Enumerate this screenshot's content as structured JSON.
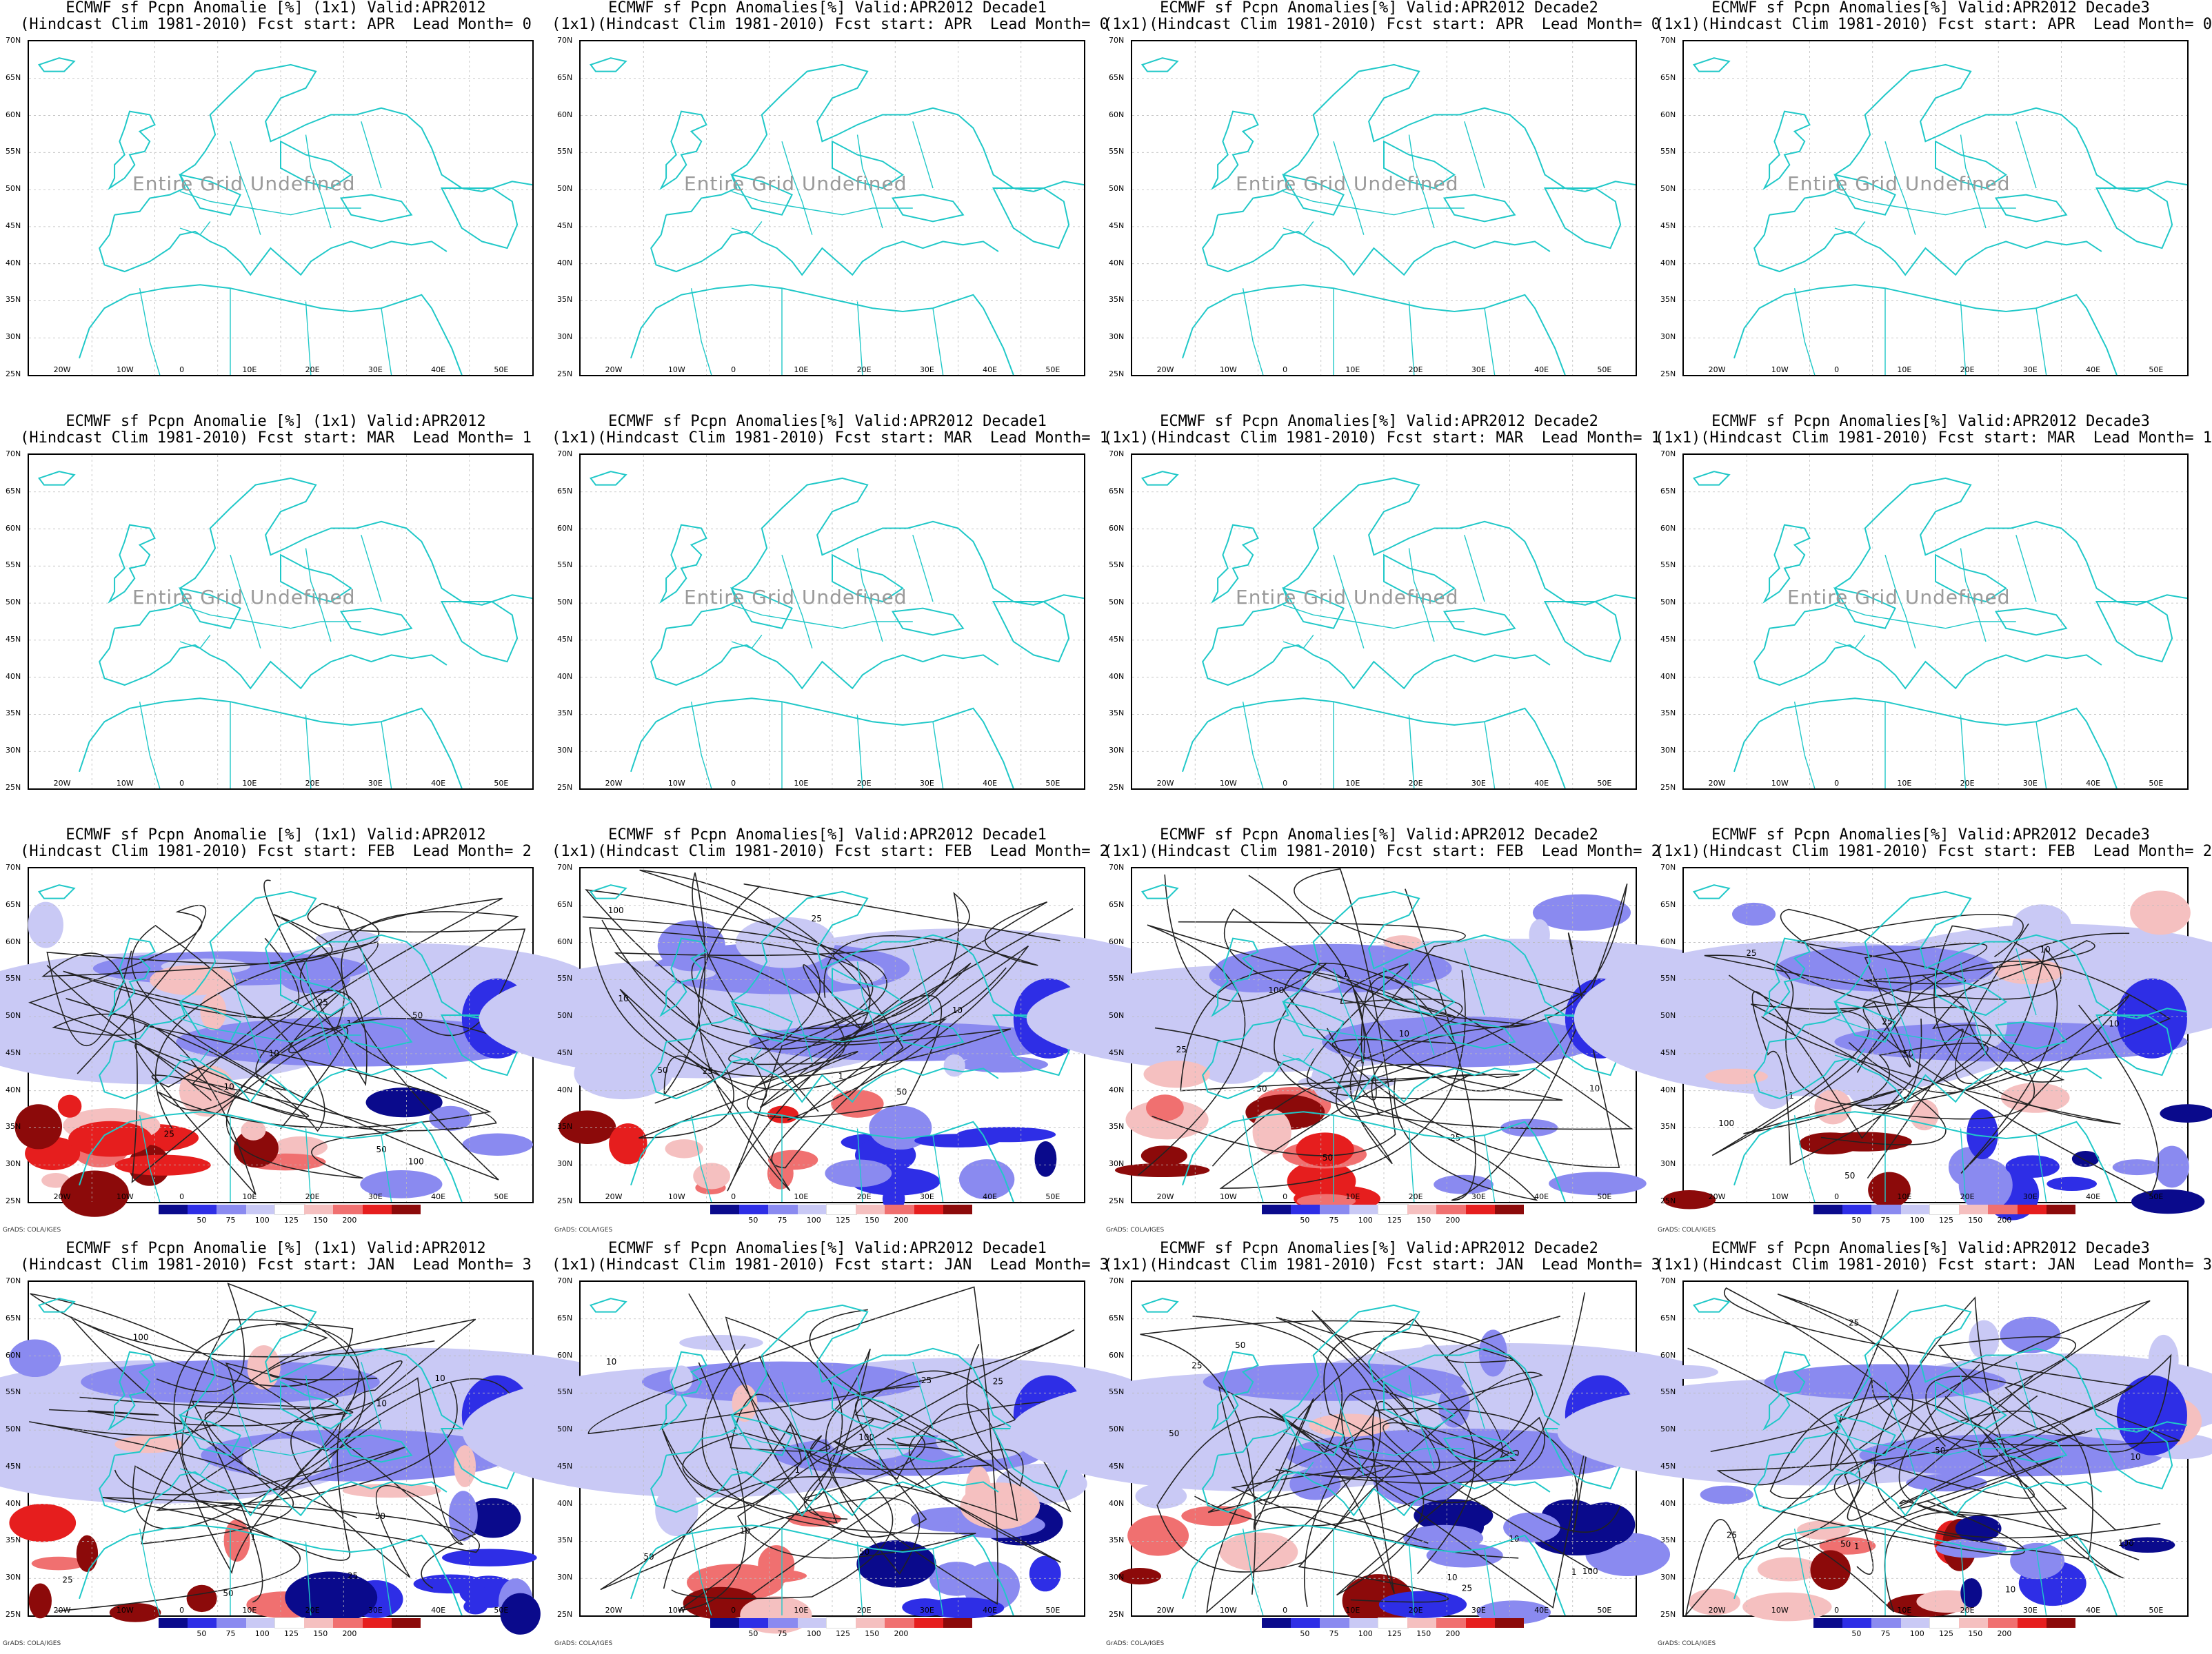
{
  "figure": {
    "undefined_text": "Entire Grid Undefined",
    "credit": "GrADS: COLA/IGES",
    "lat_labels": [
      "70N",
      "65N",
      "60N",
      "55N",
      "50N",
      "45N",
      "40N",
      "35N",
      "30N",
      "25N"
    ],
    "lon_labels": [
      "20W",
      "10W",
      "0",
      "10E",
      "20E",
      "30E",
      "40E",
      "50E"
    ],
    "colorbar": {
      "labels": [
        "50",
        "75",
        "100",
        "125",
        "150",
        "200"
      ],
      "colors": [
        "#0a0a8c",
        "#2e2ee6",
        "#8a8af0",
        "#c9c9f5",
        "#ffffff",
        "#f5c0c0",
        "#f07070",
        "#e61e1e",
        "#8c0a0a"
      ]
    }
  },
  "panels": [
    {
      "title1": "ECMWF sf Pcpn Anomalie [%] (1x1) Valid:APR2012",
      "title2": "(Hindcast Clim 1981-2010) Fcst start: APR  Lead Month= 0",
      "undefined": true
    },
    {
      "title1": "ECMWF sf Pcpn Anomalies[%] Valid:APR2012 Decade1",
      "title2": "(1x1)(Hindcast Clim 1981-2010) Fcst start: APR  Lead Month= 0",
      "undefined": true
    },
    {
      "title1": "ECMWF sf Pcpn Anomalies[%] Valid:APR2012 Decade2",
      "title2": "(1x1)(Hindcast Clim 1981-2010) Fcst start: APR  Lead Month= 0",
      "undefined": true
    },
    {
      "title1": "ECMWF sf Pcpn Anomalies[%] Valid:APR2012 Decade3",
      "title2": "(1x1)(Hindcast Clim 1981-2010) Fcst start: APR  Lead Month= 0",
      "undefined": true
    },
    {
      "title1": "ECMWF sf Pcpn Anomalie [%] (1x1) Valid:APR2012",
      "title2": "(Hindcast Clim 1981-2010) Fcst start: MAR  Lead Month= 1",
      "undefined": true
    },
    {
      "title1": "ECMWF sf Pcpn Anomalies[%] Valid:APR2012 Decade1",
      "title2": "(1x1)(Hindcast Clim 1981-2010) Fcst start: MAR  Lead Month= 1",
      "undefined": true
    },
    {
      "title1": "ECMWF sf Pcpn Anomalies[%] Valid:APR2012 Decade2",
      "title2": "(1x1)(Hindcast Clim 1981-2010) Fcst start: MAR  Lead Month= 1",
      "undefined": true
    },
    {
      "title1": "ECMWF sf Pcpn Anomalies[%] Valid:APR2012 Decade3",
      "title2": "(1x1)(Hindcast Clim 1981-2010) Fcst start: MAR  Lead Month= 1",
      "undefined": true
    },
    {
      "title1": "ECMWF sf Pcpn Anomalie [%] (1x1) Valid:APR2012",
      "title2": "(Hindcast Clim 1981-2010) Fcst start: FEB  Lead Month= 2",
      "undefined": false
    },
    {
      "title1": "ECMWF sf Pcpn Anomalies[%] Valid:APR2012 Decade1",
      "title2": "(1x1)(Hindcast Clim 1981-2010) Fcst start: FEB  Lead Month= 2",
      "undefined": false
    },
    {
      "title1": "ECMWF sf Pcpn Anomalies[%] Valid:APR2012 Decade2",
      "title2": "(1x1)(Hindcast Clim 1981-2010) Fcst start: FEB  Lead Month= 2",
      "undefined": false
    },
    {
      "title1": "ECMWF sf Pcpn Anomalies[%] Valid:APR2012 Decade3",
      "title2": "(1x1)(Hindcast Clim 1981-2010) Fcst start: FEB  Lead Month= 2",
      "undefined": false
    },
    {
      "title1": "ECMWF sf Pcpn Anomalie [%] (1x1) Valid:APR2012",
      "title2": "(Hindcast Clim 1981-2010) Fcst start: JAN  Lead Month= 3",
      "undefined": false
    },
    {
      "title1": "ECMWF sf Pcpn Anomalies[%] Valid:APR2012 Decade1",
      "title2": "(1x1)(Hindcast Clim 1981-2010) Fcst start: JAN  Lead Month= 3",
      "undefined": false
    },
    {
      "title1": "ECMWF sf Pcpn Anomalies[%] Valid:APR2012 Decade2",
      "title2": "(1x1)(Hindcast Clim 1981-2010) Fcst start: JAN  Lead Month= 3",
      "undefined": false
    },
    {
      "title1": "ECMWF sf Pcpn Anomalies[%] Valid:APR2012 Decade3",
      "title2": "(1x1)(Hindcast Clim 1981-2010) Fcst start: JAN  Lead Month= 3",
      "undefined": false
    }
  ],
  "chart_data": {
    "type": "heatmap",
    "xlim": [
      -25,
      55
    ],
    "ylim": [
      25,
      70
    ],
    "contour_labels": [
      "10",
      "25",
      "50",
      "100",
      "1"
    ]
  }
}
